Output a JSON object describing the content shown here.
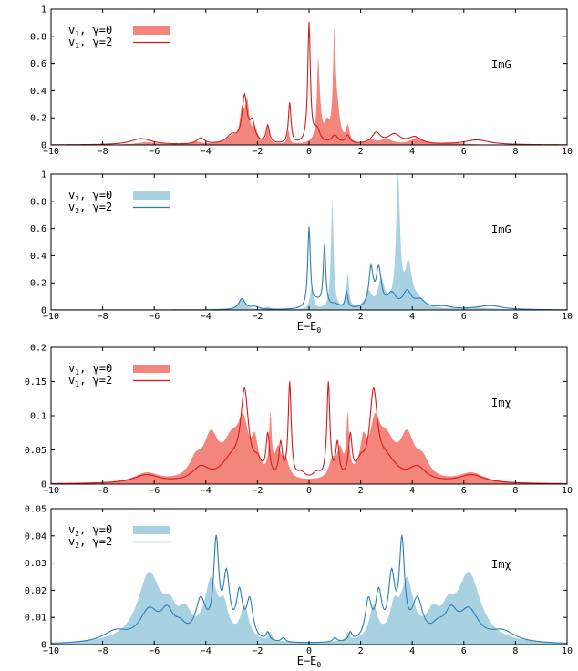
{
  "chart_data": [
    {
      "type": "area",
      "id": "p1",
      "annotation": "ImG",
      "xlabel": "",
      "xlim": [
        -10,
        10
      ],
      "ylim": [
        0,
        1
      ],
      "xticks": [
        "−10",
        "−8",
        "−6",
        "−4",
        "−2",
        "0",
        "2",
        "4",
        "6",
        "8",
        "10"
      ],
      "yticks": [
        "0",
        "0.2",
        "0.4",
        "0.6",
        "0.8",
        "1"
      ],
      "colors": {
        "fill": "#f4857c",
        "line": "#d7191c"
      },
      "legend": {
        "placement": "top-left",
        "entries": [
          {
            "var": "v",
            "sub": "1",
            "label": "γ=0",
            "style": "fill"
          },
          {
            "var": "v",
            "sub": "1",
            "label": "γ=2",
            "style": "line"
          }
        ]
      },
      "series": [
        {
          "label": "γ=0",
          "style": "fill",
          "peaks": [
            [
              -6.3,
              0.018,
              0.5
            ],
            [
              -4.4,
              0.02,
              0.3
            ],
            [
              -3.0,
              0.05,
              0.25
            ],
            [
              -2.6,
              0.22,
              0.1
            ],
            [
              -2.4,
              0.28,
              0.1
            ],
            [
              -2.1,
              0.1,
              0.12
            ],
            [
              -1.6,
              0.12,
              0.06
            ],
            [
              -0.8,
              0.1,
              0.05
            ],
            [
              0.35,
              0.45,
              0.05
            ],
            [
              0.4,
              0.22,
              0.1
            ],
            [
              0.7,
              0.12,
              0.12
            ],
            [
              0.98,
              0.74,
              0.06
            ],
            [
              1.1,
              0.2,
              0.12
            ],
            [
              1.5,
              0.12,
              0.08
            ],
            [
              2.4,
              0.03,
              0.2
            ],
            [
              3.0,
              0.04,
              0.25
            ],
            [
              4.2,
              0.05,
              0.3
            ],
            [
              5.5,
              0.015,
              0.5
            ]
          ]
        },
        {
          "label": "γ=2",
          "style": "line",
          "peaks": [
            [
              -6.5,
              0.045,
              0.5
            ],
            [
              -4.2,
              0.045,
              0.18
            ],
            [
              -3.0,
              0.06,
              0.25
            ],
            [
              -2.5,
              0.34,
              0.12
            ],
            [
              -2.2,
              0.14,
              0.12
            ],
            [
              -1.6,
              0.13,
              0.08
            ],
            [
              -0.75,
              0.3,
              0.06
            ],
            [
              0.0,
              0.88,
              0.06
            ],
            [
              0.3,
              0.1,
              0.15
            ],
            [
              1.0,
              0.06,
              0.15
            ],
            [
              1.5,
              0.06,
              0.1
            ],
            [
              2.6,
              0.08,
              0.2
            ],
            [
              3.3,
              0.07,
              0.3
            ],
            [
              4.1,
              0.05,
              0.3
            ],
            [
              6.5,
              0.035,
              0.6
            ]
          ]
        }
      ]
    },
    {
      "type": "area",
      "id": "p2",
      "annotation": "ImG",
      "xlabel": "E−E",
      "xlabel_sub": "0",
      "xlim": [
        -10,
        10
      ],
      "ylim": [
        0,
        1
      ],
      "xticks": [
        "−10",
        "−8",
        "−6",
        "−4",
        "−2",
        "0",
        "2",
        "4",
        "6",
        "8",
        "10"
      ],
      "yticks": [
        "0",
        "0.2",
        "0.4",
        "0.6",
        "0.8",
        "1"
      ],
      "colors": {
        "fill": "#a8d1e2",
        "line": "#2c7bb6"
      },
      "legend": {
        "placement": "top-left",
        "entries": [
          {
            "var": "v",
            "sub": "2",
            "label": "γ=0",
            "style": "fill"
          },
          {
            "var": "v",
            "sub": "2",
            "label": "γ=2",
            "style": "line"
          }
        ]
      },
      "series": [
        {
          "label": "γ=0",
          "style": "fill",
          "peaks": [
            [
              -2.6,
              0.08,
              0.15
            ],
            [
              -1.6,
              0.02,
              0.15
            ],
            [
              0.1,
              0.15,
              0.08
            ],
            [
              0.9,
              0.8,
              0.06
            ],
            [
              1.5,
              0.25,
              0.06
            ],
            [
              2.3,
              0.12,
              0.15
            ],
            [
              2.8,
              0.2,
              0.15
            ],
            [
              3.45,
              0.95,
              0.09
            ],
            [
              3.85,
              0.3,
              0.15
            ],
            [
              4.2,
              0.06,
              0.3
            ],
            [
              6.5,
              0.015,
              0.8
            ]
          ]
        },
        {
          "label": "γ=2",
          "style": "line",
          "peaks": [
            [
              -2.6,
              0.08,
              0.15
            ],
            [
              -2.1,
              0.02,
              0.2
            ],
            [
              0.0,
              0.59,
              0.06
            ],
            [
              0.3,
              0.05,
              0.2
            ],
            [
              0.6,
              0.45,
              0.06
            ],
            [
              1.0,
              0.03,
              0.2
            ],
            [
              1.45,
              0.12,
              0.06
            ],
            [
              2.4,
              0.28,
              0.1
            ],
            [
              2.7,
              0.28,
              0.12
            ],
            [
              3.2,
              0.1,
              0.2
            ],
            [
              3.8,
              0.12,
              0.2
            ],
            [
              4.3,
              0.06,
              0.25
            ],
            [
              5.2,
              0.02,
              0.4
            ],
            [
              7.0,
              0.03,
              0.6
            ]
          ]
        }
      ]
    },
    {
      "type": "area",
      "id": "p3",
      "annotation": "Imχ",
      "xlabel": "",
      "xlim": [
        -10,
        10
      ],
      "ylim": [
        0,
        0.2
      ],
      "xticks": [
        "−10",
        "−8",
        "−6",
        "−4",
        "−2",
        "0",
        "2",
        "4",
        "6",
        "8",
        "10"
      ],
      "yticks": [
        "0",
        "0.05",
        "0.1",
        "0.15",
        "0.2"
      ],
      "colors": {
        "fill": "#f4857c",
        "line": "#d7191c"
      },
      "legend": {
        "placement": "top-left",
        "entries": [
          {
            "var": "v",
            "sub": "1",
            "label": "γ=0",
            "style": "fill"
          },
          {
            "var": "v",
            "sub": "1",
            "label": "γ=2",
            "style": "line"
          }
        ]
      },
      "series": [
        {
          "label": "γ=0",
          "style": "fill",
          "symmetric": true,
          "peaks": [
            [
              6.3,
              0.014,
              0.6
            ],
            [
              4.4,
              0.025,
              0.3
            ],
            [
              3.8,
              0.06,
              0.35
            ],
            [
              3.0,
              0.05,
              0.4
            ],
            [
              2.55,
              0.07,
              0.25
            ],
            [
              2.1,
              0.045,
              0.15
            ],
            [
              1.5,
              0.085,
              0.06
            ],
            [
              1.2,
              0.04,
              0.15
            ],
            [
              0.9,
              0.025,
              0.15
            ]
          ]
        },
        {
          "label": "γ=2",
          "style": "line",
          "symmetric": true,
          "peaks": [
            [
              6.3,
              0.012,
              0.6
            ],
            [
              4.2,
              0.02,
              0.4
            ],
            [
              3.0,
              0.03,
              0.5
            ],
            [
              2.5,
              0.12,
              0.18
            ],
            [
              2.0,
              0.02,
              0.2
            ],
            [
              1.6,
              0.06,
              0.08
            ],
            [
              1.1,
              0.05,
              0.08
            ],
            [
              0.75,
              0.14,
              0.07
            ],
            [
              0.3,
              0.01,
              0.2
            ]
          ]
        }
      ]
    },
    {
      "type": "area",
      "id": "p4",
      "annotation": "Imχ",
      "xlabel": "E−E",
      "xlabel_sub": "0",
      "xlim": [
        -10,
        10
      ],
      "ylim": [
        0,
        0.05
      ],
      "xticks": [
        "−10",
        "−8",
        "−6",
        "−4",
        "−2",
        "0",
        "2",
        "4",
        "6",
        "8",
        "10"
      ],
      "yticks": [
        "0",
        "0.01",
        "0.02",
        "0.03",
        "0.04",
        "0.05"
      ],
      "colors": {
        "fill": "#a8d1e2",
        "line": "#2c7bb6"
      },
      "legend": {
        "placement": "top-left",
        "entries": [
          {
            "var": "v",
            "sub": "2",
            "label": "γ=0",
            "style": "fill"
          },
          {
            "var": "v",
            "sub": "2",
            "label": "γ=2",
            "style": "line"
          }
        ]
      },
      "series": [
        {
          "label": "γ=0",
          "style": "fill",
          "symmetric": true,
          "peaks": [
            [
              6.2,
              0.025,
              0.55
            ],
            [
              5.4,
              0.008,
              0.3
            ],
            [
              4.8,
              0.008,
              0.3
            ],
            [
              3.8,
              0.021,
              0.3
            ],
            [
              3.3,
              0.01,
              0.2
            ],
            [
              2.5,
              0.012,
              0.2
            ],
            [
              1.5,
              0.003,
              0.08
            ]
          ]
        },
        {
          "label": "γ=2",
          "style": "line",
          "symmetric": true,
          "peaks": [
            [
              7.5,
              0.004,
              0.6
            ],
            [
              6.2,
              0.011,
              0.45
            ],
            [
              5.5,
              0.009,
              0.3
            ],
            [
              5.0,
              0.004,
              0.3
            ],
            [
              3.6,
              0.034,
              0.12
            ],
            [
              3.2,
              0.022,
              0.15
            ],
            [
              4.2,
              0.014,
              0.25
            ],
            [
              2.7,
              0.016,
              0.15
            ],
            [
              2.3,
              0.014,
              0.15
            ],
            [
              1.6,
              0.003,
              0.08
            ],
            [
              1.0,
              0.0015,
              0.1
            ]
          ]
        }
      ]
    }
  ]
}
